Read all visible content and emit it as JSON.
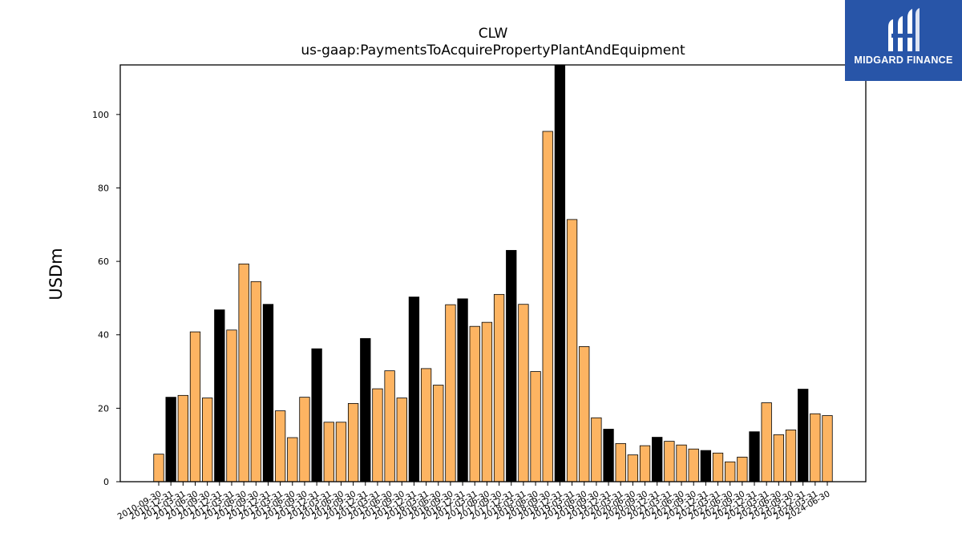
{
  "title": "CLW",
  "subtitle": "us-gaap:PaymentsToAcquirePropertyPlantAndEquipment",
  "brand": {
    "name": "MIDGARD FINANCE",
    "color": "#2855a8"
  },
  "chart_data": {
    "type": "bar",
    "ylabel": "USDm",
    "xlabel": "",
    "ylim": [
      0,
      113.5
    ],
    "yticks": [
      0,
      20,
      40,
      60,
      80,
      100
    ],
    "colors": {
      "quarter": "#fdb462",
      "fiscal_year_end": "#000000",
      "edge": "#000000"
    },
    "categories": [
      "2010-09-30",
      "2010-12-31",
      "2011-03-31",
      "2011-06-30",
      "2011-09-30",
      "2011-12-31",
      "2012-03-31",
      "2012-06-30",
      "2012-09-30",
      "2012-12-31",
      "2013-03-31",
      "2013-06-30",
      "2013-09-30",
      "2013-12-31",
      "2014-03-31",
      "2014-06-30",
      "2014-09-30",
      "2014-12-31",
      "2015-03-31",
      "2015-06-30",
      "2015-09-30",
      "2015-12-31",
      "2016-03-31",
      "2016-06-30",
      "2016-09-30",
      "2016-12-31",
      "2017-03-31",
      "2017-06-30",
      "2017-09-30",
      "2017-12-31",
      "2018-03-31",
      "2018-06-30",
      "2018-09-30",
      "2018-12-31",
      "2019-03-31",
      "2019-06-30",
      "2019-09-30",
      "2019-12-31",
      "2020-03-31",
      "2020-06-30",
      "2020-09-30",
      "2020-12-31",
      "2021-03-31",
      "2021-06-30",
      "2021-09-30",
      "2021-12-31",
      "2022-03-31",
      "2022-06-30",
      "2022-09-30",
      "2022-12-31",
      "2023-03-31",
      "2023-06-30",
      "2023-09-30",
      "2023-12-31",
      "2024-03-31",
      "2024-06-30"
    ],
    "series": [
      {
        "values": [
          7.5,
          23,
          23.5,
          40.8,
          22.8,
          46.8,
          41.3,
          59.3,
          54.5,
          48.3,
          19.3,
          12,
          23,
          36.2,
          16.2,
          16.2,
          21.3,
          39,
          25.3,
          30.2,
          22.8,
          50.3,
          30.8,
          26.3,
          48.2,
          49.8,
          42.3,
          43.4,
          51,
          63,
          48.3,
          30,
          95.4,
          113.5,
          71.4,
          36.8,
          17.4,
          14.3,
          10.4,
          7.3,
          9.8,
          12.1,
          11,
          10,
          8.9,
          8.5,
          7.8,
          5.4,
          6.7,
          13.6,
          21.5,
          12.8,
          14.1,
          25.2,
          18.5,
          18
        ]
      }
    ],
    "fiscal_year_end_flags": [
      0,
      1,
      0,
      0,
      0,
      1,
      0,
      0,
      0,
      1,
      0,
      0,
      0,
      1,
      0,
      0,
      0,
      1,
      0,
      0,
      0,
      1,
      0,
      0,
      0,
      1,
      0,
      0,
      0,
      1,
      0,
      0,
      0,
      1,
      0,
      0,
      0,
      1,
      0,
      0,
      0,
      1,
      0,
      0,
      0,
      1,
      0,
      0,
      0,
      1,
      0,
      0,
      0,
      1,
      0,
      0
    ]
  }
}
